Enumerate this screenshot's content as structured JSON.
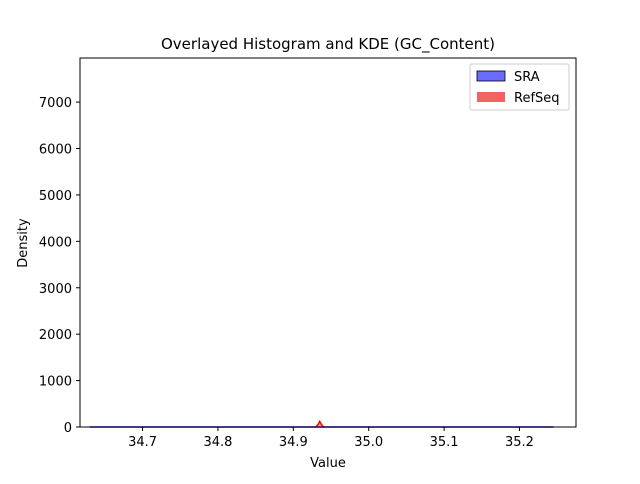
{
  "chart_data": {
    "type": "histogram",
    "title": "Overlayed Histogram and KDE (GC_Content)",
    "xlabel": "Value",
    "ylabel": "Density",
    "xlim": [
      34.617,
      35.275
    ],
    "ylim": [
      0,
      7950
    ],
    "x_ticks": [
      34.7,
      34.8,
      34.9,
      35.0,
      35.1,
      35.2
    ],
    "x_tick_labels": [
      "34.7",
      "34.8",
      "34.9",
      "35.0",
      "35.1",
      "35.2"
    ],
    "y_ticks": [
      0,
      1000,
      2000,
      3000,
      4000,
      5000,
      6000,
      7000
    ],
    "y_tick_labels": [
      "0",
      "1000",
      "2000",
      "3000",
      "4000",
      "5000",
      "6000",
      "7000"
    ],
    "grid": false,
    "legend_position": "top-right",
    "series": [
      {
        "name": "SRA",
        "kind": "histogram+kde",
        "fill_color": "#6b6bff",
        "edge_color": "#000000",
        "line_color": "#0000ff",
        "points": [
          [
            34.63,
            0
          ],
          [
            34.7,
            0
          ],
          [
            34.8,
            0
          ],
          [
            34.9,
            0
          ],
          [
            35.0,
            0
          ],
          [
            35.1,
            0
          ],
          [
            35.2,
            0
          ],
          [
            35.245,
            0
          ]
        ]
      },
      {
        "name": "RefSeq",
        "kind": "histogram+kde",
        "fill_color": "#f06464",
        "line_color": "#ff0000",
        "points": [
          [
            34.93,
            0
          ],
          [
            34.933,
            60
          ],
          [
            34.935,
            120
          ],
          [
            34.937,
            60
          ],
          [
            34.94,
            0
          ]
        ]
      }
    ]
  },
  "colors": {
    "axes": "#000000",
    "background": "#ffffff"
  }
}
